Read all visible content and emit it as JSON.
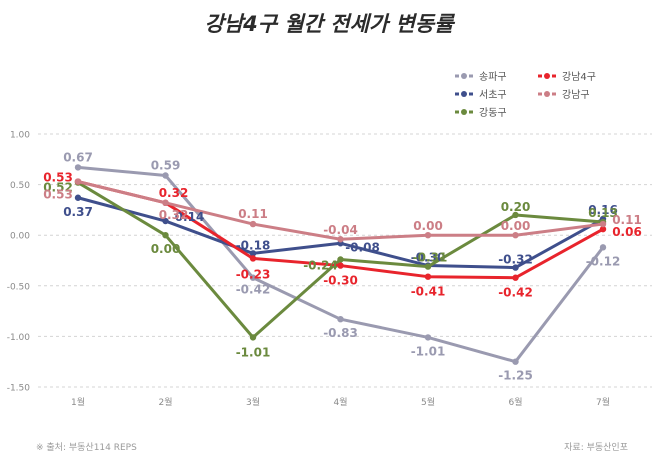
{
  "chart_data": {
    "type": "line",
    "title": "강남4구 월간 전세가 변동률",
    "categories": [
      "1월",
      "2월",
      "3월",
      "4월",
      "5월",
      "6월",
      "7월"
    ],
    "ylim": [
      -1.5,
      1.0
    ],
    "yticks": [
      "1.00",
      "0.50",
      "0.00",
      "-0.50",
      "-1.00",
      "-1.50"
    ],
    "ytick_values": [
      1.0,
      0.5,
      0.0,
      -0.5,
      -1.0,
      -1.5
    ],
    "grid": "horizontal dashed",
    "legend_position": "top-right",
    "series": [
      {
        "name": "송파구",
        "color": "#9a9ab0",
        "values": [
          0.67,
          0.59,
          -0.42,
          -0.83,
          -1.01,
          -1.25,
          -0.12
        ],
        "labels": [
          "0.67",
          "0.59",
          "-0.42",
          "-0.83",
          "-1.01",
          "-1.25",
          "-0.12"
        ]
      },
      {
        "name": "서초구",
        "color": "#3f4f8c",
        "values": [
          0.37,
          0.14,
          -0.18,
          -0.08,
          -0.3,
          -0.32,
          0.16
        ],
        "labels": [
          "0.37",
          "0.14",
          "-0.18",
          "-0.08",
          "-0.30",
          "-0.32",
          "0.16"
        ]
      },
      {
        "name": "강동구",
        "color": "#6b8a3e",
        "values": [
          0.52,
          0.0,
          -1.01,
          -0.24,
          -0.31,
          0.2,
          0.13
        ],
        "labels": [
          "0.52",
          "0.00",
          "-1.01",
          "-0.24",
          "-0.31",
          "0.20",
          "0.13"
        ]
      },
      {
        "name": "강남4구",
        "color": "#e8242c",
        "values": [
          0.53,
          0.32,
          -0.23,
          -0.3,
          -0.41,
          -0.42,
          0.06
        ],
        "labels": [
          "0.53",
          "0.32",
          "-0.23",
          "-0.30",
          "-0.41",
          "-0.42",
          "0.06"
        ]
      },
      {
        "name": "강남구",
        "color": "#cc7e86",
        "values": [
          0.53,
          0.32,
          0.11,
          -0.04,
          0.0,
          0.0,
          0.11
        ],
        "labels": [
          "0.53",
          "0.32",
          "0.11",
          "-0.04",
          "0.00",
          "0.00",
          "0.11"
        ]
      }
    ]
  },
  "footer": {
    "source_left": "※ 출처: 부동산114 REPS",
    "source_right": "자료: 부동산인포"
  }
}
